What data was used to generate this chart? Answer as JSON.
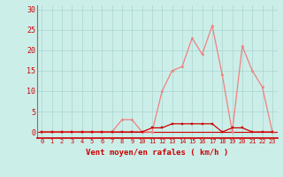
{
  "xlabel": "Vent moyen/en rafales ( km/h )",
  "background_color": "#cceee8",
  "grid_color": "#aad4d0",
  "line_color_light": "#f08080",
  "line_color_dark": "#cc0000",
  "x_ticks": [
    0,
    1,
    2,
    3,
    4,
    5,
    6,
    7,
    8,
    9,
    10,
    11,
    12,
    13,
    14,
    15,
    16,
    17,
    18,
    19,
    20,
    21,
    22,
    23
  ],
  "y_ticks": [
    0,
    5,
    10,
    15,
    20,
    25,
    30
  ],
  "xlim": [
    -0.5,
    23.5
  ],
  "ylim": [
    -1.5,
    31
  ],
  "light_series_y": [
    0,
    0,
    0,
    0,
    0,
    0,
    0,
    0,
    3,
    3,
    0,
    0,
    10,
    15,
    16,
    23,
    19,
    26,
    14,
    0,
    21,
    15,
    11,
    0
  ],
  "dark_series_y": [
    0,
    0,
    0,
    0,
    0,
    0,
    0,
    0,
    0,
    0,
    0,
    1,
    1,
    2,
    2,
    2,
    2,
    2,
    0,
    1,
    1,
    0,
    0,
    0
  ]
}
